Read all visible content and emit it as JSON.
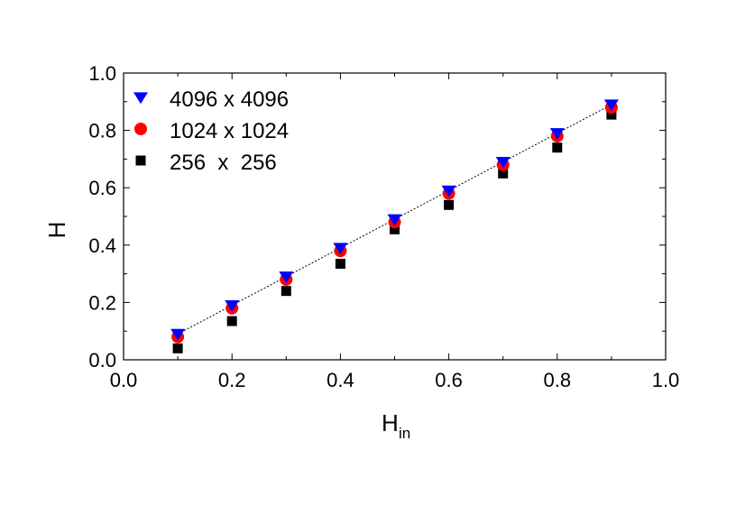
{
  "chart_data": {
    "type": "scatter",
    "xlabel": "H",
    "xlabel_sub": "in",
    "ylabel": "H",
    "xlim": [
      0.0,
      1.0
    ],
    "ylim": [
      0.0,
      1.0
    ],
    "x_ticks": [
      "0.0",
      "0.2",
      "0.4",
      "0.6",
      "0.8",
      "1.0"
    ],
    "y_ticks": [
      "0.0",
      "0.2",
      "0.4",
      "0.6",
      "0.8",
      "1.0"
    ],
    "grid": false,
    "legend_position": "top-left",
    "series": [
      {
        "name": "4096 x 4096",
        "marker": "triangle-down",
        "color": "#0000ff",
        "x": [
          0.1,
          0.2,
          0.3,
          0.4,
          0.5,
          0.6,
          0.7,
          0.8,
          0.9
        ],
        "y": [
          0.09,
          0.19,
          0.29,
          0.39,
          0.49,
          0.59,
          0.69,
          0.79,
          0.89
        ]
      },
      {
        "name": "1024 x 1024",
        "marker": "circle",
        "color": "#ff0000",
        "x": [
          0.1,
          0.2,
          0.3,
          0.4,
          0.5,
          0.6,
          0.7,
          0.8,
          0.9
        ],
        "y": [
          0.08,
          0.18,
          0.28,
          0.38,
          0.48,
          0.58,
          0.68,
          0.78,
          0.88
        ]
      },
      {
        "name": "256  x  256",
        "marker": "square",
        "color": "#000000",
        "x": [
          0.1,
          0.2,
          0.3,
          0.4,
          0.5,
          0.6,
          0.7,
          0.8,
          0.9
        ],
        "y": [
          0.04,
          0.135,
          0.24,
          0.335,
          0.455,
          0.54,
          0.65,
          0.74,
          0.855
        ]
      }
    ],
    "reference_line": {
      "style": "dotted",
      "color": "#000000",
      "x": [
        0.1,
        0.9
      ],
      "y": [
        0.09,
        0.89
      ]
    }
  }
}
